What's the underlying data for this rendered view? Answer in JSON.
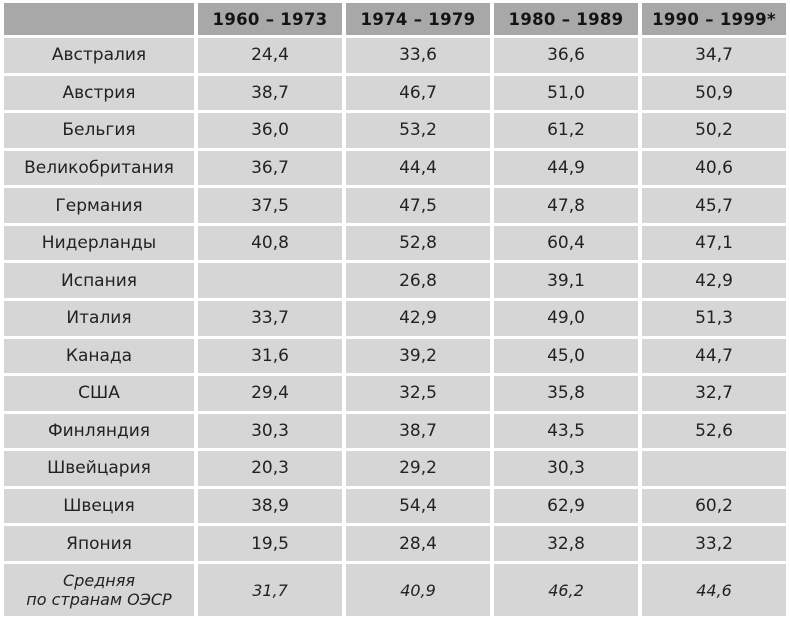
{
  "table": {
    "columns": [
      "",
      "1960 – 1973",
      "1974 – 1979",
      "1980 – 1989",
      "1990 – 1999*"
    ],
    "rows": [
      {
        "label": "Австралия",
        "values": [
          "24,4",
          "33,6",
          "36,6",
          "34,7"
        ]
      },
      {
        "label": "Австрия",
        "values": [
          "38,7",
          "46,7",
          "51,0",
          "50,9"
        ]
      },
      {
        "label": "Бельгия",
        "values": [
          "36,0",
          "53,2",
          "61,2",
          "50,2"
        ]
      },
      {
        "label": "Великобритания",
        "values": [
          "36,7",
          "44,4",
          "44,9",
          "40,6"
        ]
      },
      {
        "label": "Германия",
        "values": [
          "37,5",
          "47,5",
          "47,8",
          "45,7"
        ]
      },
      {
        "label": "Нидерланды",
        "values": [
          "40,8",
          "52,8",
          "60,4",
          "47,1"
        ]
      },
      {
        "label": "Испания",
        "values": [
          "",
          "26,8",
          "39,1",
          "42,9"
        ]
      },
      {
        "label": "Италия",
        "values": [
          "33,7",
          "42,9",
          "49,0",
          "51,3"
        ]
      },
      {
        "label": "Канада",
        "values": [
          "31,6",
          "39,2",
          "45,0",
          "44,7"
        ]
      },
      {
        "label": "США",
        "values": [
          "29,4",
          "32,5",
          "35,8",
          "32,7"
        ]
      },
      {
        "label": "Финляндия",
        "values": [
          "30,3",
          "38,7",
          "43,5",
          "52,6"
        ]
      },
      {
        "label": "Швейцария",
        "values": [
          "20,3",
          "29,2",
          "30,3",
          ""
        ]
      },
      {
        "label": "Швеция",
        "values": [
          "38,9",
          "54,4",
          "62,9",
          "60,2"
        ]
      },
      {
        "label": "Япония",
        "values": [
          "19,5",
          "28,4",
          "32,8",
          "33,2"
        ]
      },
      {
        "label": "Средняя\nпо странам ОЭСР",
        "values": [
          "31,7",
          "40,9",
          "46,2",
          "44,6"
        ]
      }
    ],
    "colors": {
      "header_bg": "#a8a8a8",
      "cell_bg": "#d6d6d6",
      "gap": "#ffffff",
      "text": "#222222"
    }
  },
  "chart_data": {
    "type": "table",
    "title": "",
    "categories": [
      "1960–1973",
      "1974–1979",
      "1980–1989",
      "1990–1999*"
    ],
    "series": [
      {
        "name": "Австралия",
        "values": [
          24.4,
          33.6,
          36.6,
          34.7
        ]
      },
      {
        "name": "Австрия",
        "values": [
          38.7,
          46.7,
          51.0,
          50.9
        ]
      },
      {
        "name": "Бельгия",
        "values": [
          36.0,
          53.2,
          61.2,
          50.2
        ]
      },
      {
        "name": "Великобритания",
        "values": [
          36.7,
          44.4,
          44.9,
          40.6
        ]
      },
      {
        "name": "Германия",
        "values": [
          37.5,
          47.5,
          47.8,
          45.7
        ]
      },
      {
        "name": "Нидерланды",
        "values": [
          40.8,
          52.8,
          60.4,
          47.1
        ]
      },
      {
        "name": "Испания",
        "values": [
          null,
          26.8,
          39.1,
          42.9
        ]
      },
      {
        "name": "Италия",
        "values": [
          33.7,
          42.9,
          49.0,
          51.3
        ]
      },
      {
        "name": "Канада",
        "values": [
          31.6,
          39.2,
          45.0,
          44.7
        ]
      },
      {
        "name": "США",
        "values": [
          29.4,
          32.5,
          35.8,
          32.7
        ]
      },
      {
        "name": "Финляндия",
        "values": [
          30.3,
          38.7,
          43.5,
          52.6
        ]
      },
      {
        "name": "Швейцария",
        "values": [
          20.3,
          29.2,
          30.3,
          null
        ]
      },
      {
        "name": "Швеция",
        "values": [
          38.9,
          54.4,
          62.9,
          60.2
        ]
      },
      {
        "name": "Япония",
        "values": [
          19.5,
          28.4,
          32.8,
          33.2
        ]
      },
      {
        "name": "Средняя по странам ОЭСР",
        "values": [
          31.7,
          40.9,
          46.2,
          44.6
        ]
      }
    ]
  }
}
